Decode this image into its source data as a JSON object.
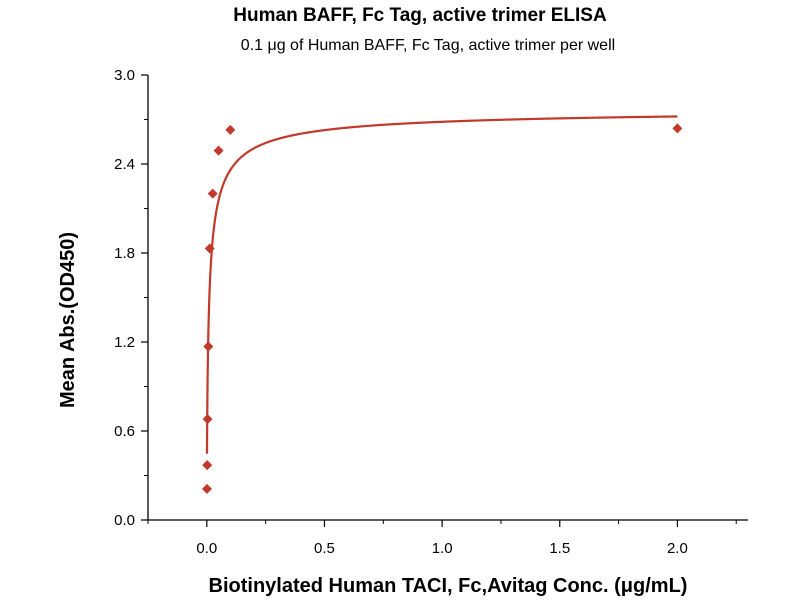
{
  "chart_data": {
    "type": "scatter",
    "title": "Human BAFF, Fc Tag, active trimer ELISA",
    "subtitle": "0.1 μg of Human BAFF, Fc Tag, active trimer per well",
    "xlabel": "Biotinylated Human TACI, Fc,Avitag Conc. (μg/mL)",
    "ylabel": "Mean Abs.(OD450)",
    "xlim": [
      -0.25,
      2.3
    ],
    "ylim": [
      0.0,
      3.0
    ],
    "x_ticks": [
      0.0,
      0.5,
      1.0,
      1.5,
      2.0
    ],
    "x_tick_labels": [
      "0.0",
      "0.5",
      "1.0",
      "1.5",
      "2.0"
    ],
    "y_ticks": [
      0.0,
      0.6,
      1.2,
      1.8,
      2.4,
      3.0
    ],
    "y_tick_labels": [
      "0.0",
      "0.6",
      "1.2",
      "1.8",
      "2.4",
      "3.0"
    ],
    "grid": false,
    "legend": false,
    "series": [
      {
        "marker": "diamond",
        "color": "#c0392b",
        "line_color": "#c0392b",
        "fit": "4PL",
        "x": [
          0.0008,
          0.0016,
          0.0031,
          0.0063,
          0.0125,
          0.025,
          0.05,
          0.1,
          2.0
        ],
        "y": [
          0.21,
          0.37,
          0.68,
          1.17,
          1.83,
          2.2,
          2.49,
          2.63,
          2.64
        ]
      }
    ]
  }
}
